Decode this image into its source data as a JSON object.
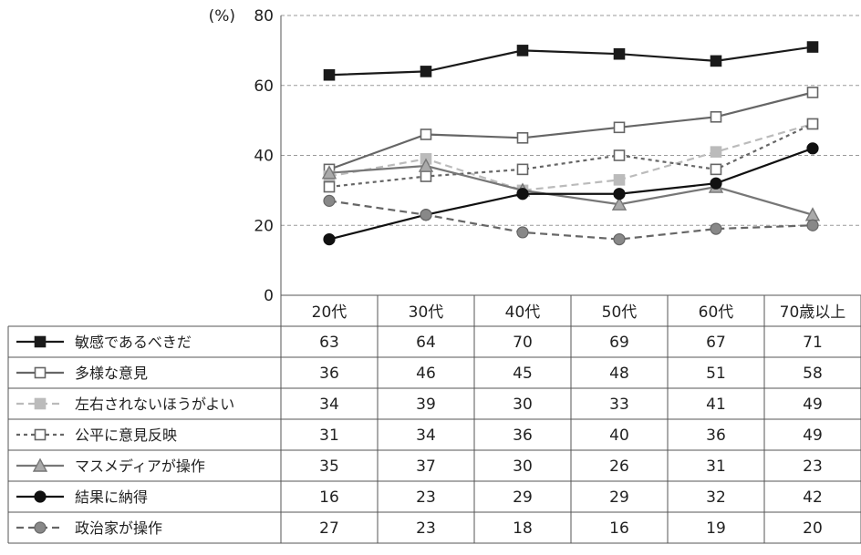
{
  "chart_data": {
    "type": "line",
    "yunit": "(%)",
    "ylim": [
      0,
      80
    ],
    "yticks": [
      0,
      20,
      40,
      60,
      80
    ],
    "grid": true,
    "categories": [
      "20代",
      "30代",
      "40代",
      "50代",
      "60代",
      "70歳以上"
    ],
    "series": [
      {
        "name": "敏感であるべきだ",
        "values": [
          63,
          64,
          70,
          69,
          67,
          71
        ],
        "color": "#1a1a1a",
        "dash": "solid",
        "marker": "square-filled",
        "marker_fill": "#1a1a1a"
      },
      {
        "name": "多様な意見",
        "values": [
          36,
          46,
          45,
          48,
          51,
          58
        ],
        "color": "#666666",
        "dash": "solid",
        "marker": "square-open",
        "marker_fill": "#ffffff"
      },
      {
        "name": "左右されないほうがよい",
        "values": [
          34,
          39,
          30,
          33,
          41,
          49
        ],
        "color": "#bbbbbb",
        "dash": "dashed",
        "marker": "square-filled",
        "marker_fill": "#bbbbbb"
      },
      {
        "name": "公平に意見反映",
        "values": [
          31,
          34,
          36,
          40,
          36,
          49
        ],
        "color": "#666666",
        "dash": "dotted",
        "marker": "square-open",
        "marker_fill": "#ffffff"
      },
      {
        "name": "マスメディアが操作",
        "values": [
          35,
          37,
          30,
          26,
          31,
          23
        ],
        "color": "#777777",
        "dash": "solid",
        "marker": "triangle",
        "marker_fill": "#aaaaaa"
      },
      {
        "name": "結果に納得",
        "values": [
          16,
          23,
          29,
          29,
          32,
          42
        ],
        "color": "#111111",
        "dash": "solid",
        "marker": "circle",
        "marker_fill": "#111111"
      },
      {
        "name": "政治家が操作",
        "values": [
          27,
          23,
          18,
          16,
          19,
          20
        ],
        "color": "#666666",
        "dash": "dashed",
        "marker": "circle",
        "marker_fill": "#888888"
      }
    ]
  }
}
